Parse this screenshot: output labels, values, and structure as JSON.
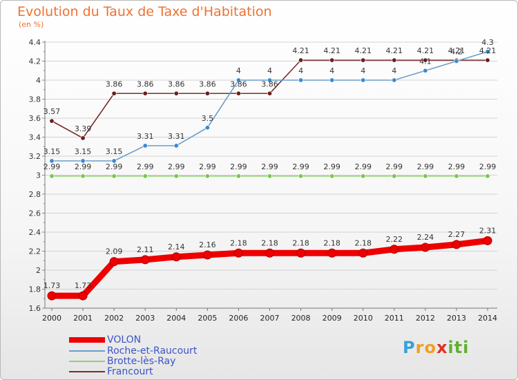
{
  "title": "Evolution du Taux de Taxe d'Habitation",
  "subtitle": "(en %)",
  "brand": {
    "text": "Proxiti",
    "letters": [
      "P",
      "r",
      "o",
      "x",
      "i",
      "t",
      "i"
    ],
    "letter_colors": [
      "#3aa0d8",
      "#f0a020",
      "#f0a020",
      "#e03020",
      "#60b030",
      "#60b030",
      "#60b030"
    ]
  },
  "chart_data": {
    "type": "line",
    "title": "Evolution du Taux de Taxe d'Habitation",
    "ylabel": "(en %)",
    "xlabel": "",
    "x": [
      2000,
      2001,
      2002,
      2003,
      2004,
      2005,
      2006,
      2007,
      2008,
      2009,
      2010,
      2011,
      2012,
      2013,
      2014
    ],
    "ylim": [
      1.6,
      4.4
    ],
    "yticks": [
      1.6,
      1.8,
      2,
      2.2,
      2.4,
      2.6,
      2.8,
      3,
      3.2,
      3.4,
      3.6,
      3.8,
      4,
      4.2,
      4.4
    ],
    "grid": "horizontal",
    "legend_position": "bottom-left",
    "series": [
      {
        "name": "VOLON",
        "color": "#ee0000",
        "emphasis": true,
        "values": [
          1.73,
          1.73,
          2.09,
          2.11,
          2.14,
          2.16,
          2.18,
          2.18,
          2.18,
          2.18,
          2.18,
          2.22,
          2.24,
          2.27,
          2.31
        ],
        "labels": [
          "1.73",
          "1.73",
          "2.09",
          "2.11",
          "2.14",
          "2.16",
          "2.18",
          "2.18",
          "2.18",
          "2.18",
          "2.18",
          "2.22",
          "2.24",
          "2.27",
          "2.31"
        ]
      },
      {
        "name": "Roche-et-Raucourt",
        "color": "#6a9ecb",
        "point_color": "#3a8ad0",
        "values": [
          3.15,
          3.15,
          3.15,
          3.31,
          3.31,
          3.5,
          4,
          4,
          4,
          4,
          4,
          4,
          4.1,
          4.2,
          4.3
        ],
        "labels": [
          "3.15",
          "3.15",
          "3.15",
          "3.31",
          "3.31",
          "3.5",
          "4",
          "4",
          "4",
          "4",
          "4",
          "4",
          "4.1",
          "4.2",
          "4.3"
        ]
      },
      {
        "name": "Brotte-lès-Ray",
        "color": "#90d070",
        "point_color": "#78c850",
        "values": [
          2.99,
          2.99,
          2.99,
          2.99,
          2.99,
          2.99,
          2.99,
          2.99,
          2.99,
          2.99,
          2.99,
          2.99,
          2.99,
          2.99,
          2.99
        ],
        "labels": [
          "2.99",
          "2.99",
          "2.99",
          "2.99",
          "2.99",
          "2.99",
          "2.99",
          "2.99",
          "2.99",
          "2.99",
          "2.99",
          "2.99",
          "2.99",
          "2.99",
          "2.99"
        ]
      },
      {
        "name": "Francourt",
        "color": "#7a2a2a",
        "point_color": "#6a1e1e",
        "values": [
          3.57,
          3.39,
          3.86,
          3.86,
          3.86,
          3.86,
          3.86,
          3.86,
          4.21,
          4.21,
          4.21,
          4.21,
          4.21,
          4.21,
          4.21
        ],
        "labels": [
          "3.57",
          "3.39",
          "3.86",
          "3.86",
          "3.86",
          "3.86",
          "3.86",
          "3.86",
          "4.21",
          "4.21",
          "4.21",
          "4.21",
          "4.21",
          "4.21",
          "4.21"
        ]
      }
    ]
  }
}
